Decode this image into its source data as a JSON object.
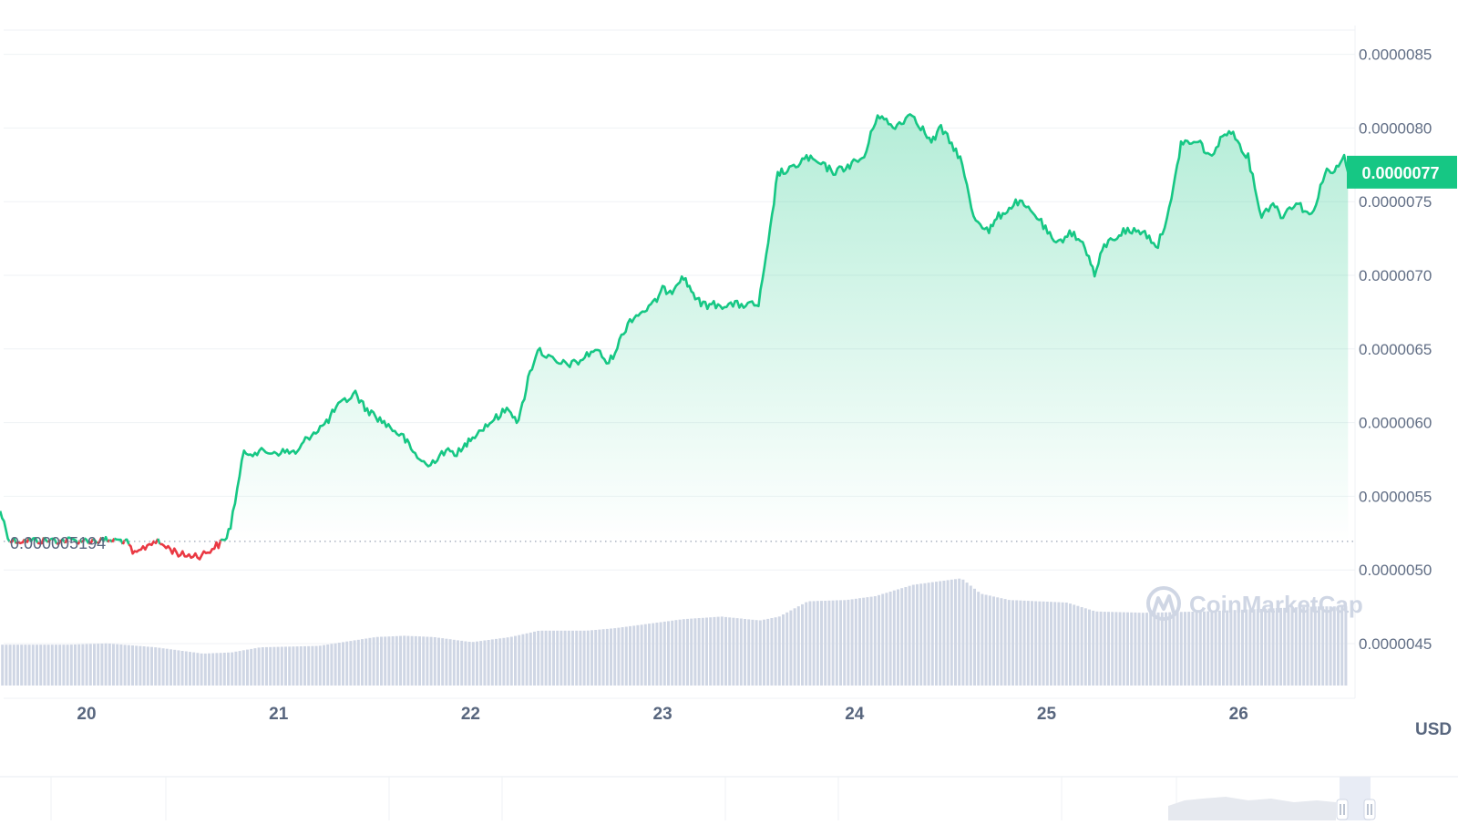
{
  "colors": {
    "up": "#16c784",
    "down": "#ea3943",
    "volume": "#cfd6e4",
    "grid": "#eff2f5",
    "text": "#616e85",
    "badge_text": "#ffffff"
  },
  "currency_label": "USD",
  "watermark": "CoinMarketCap",
  "watermark_icon": "coinmarketcap-logo-icon",
  "navigator_handle_icon": "drag-handle-icon",
  "chart_data": {
    "type": "area",
    "x_ticks": [
      "20",
      "21",
      "22",
      "23",
      "24",
      "25",
      "26"
    ],
    "x_range": [
      19.55,
      26.6
    ],
    "y_ticks": [
      "0.0000085",
      "0.0000080",
      "0.0000075",
      "0.0000070",
      "0.0000065",
      "0.0000060",
      "0.0000055",
      "0.0000050",
      "0.0000045"
    ],
    "y_range": [
      4.1e-06,
      8.7e-06
    ],
    "baseline_label": "0.000005194",
    "baseline_value": 5.194e-06,
    "current_price_label": "0.0000077",
    "current_price": 7.7e-06,
    "grid": true,
    "price_series": {
      "x": [
        19.55,
        19.6,
        19.9,
        20.2,
        20.25,
        20.35,
        20.5,
        20.6,
        20.72,
        20.75,
        20.82,
        20.9,
        21.0,
        21.1,
        21.15,
        21.25,
        21.3,
        21.4,
        21.45,
        21.55,
        21.65,
        21.7,
        21.78,
        21.85,
        21.95,
        22.0,
        22.1,
        22.2,
        22.25,
        22.3,
        22.35,
        22.45,
        22.55,
        22.65,
        22.72,
        22.83,
        22.95,
        23.0,
        23.05,
        23.1,
        23.15,
        23.2,
        23.3,
        23.4,
        23.5,
        23.55,
        23.6,
        23.65,
        23.75,
        23.9,
        24.05,
        24.12,
        24.2,
        24.3,
        24.4,
        24.45,
        24.55,
        24.62,
        24.7,
        24.75,
        24.85,
        24.95,
        25.05,
        25.12,
        25.2,
        25.25,
        25.3,
        25.4,
        25.5,
        25.58,
        25.65,
        25.7,
        25.8,
        25.85,
        25.95,
        26.05,
        26.12,
        26.18,
        26.22,
        26.3,
        26.38,
        26.45,
        26.5,
        26.55,
        26.57
      ],
      "y": [
        5.4e-06,
        5.2e-06,
        5.2e-06,
        5.2e-06,
        5.1e-06,
        5.2e-06,
        5.1e-06,
        5.1e-06,
        5.2e-06,
        5.3e-06,
        5.8e-06,
        5.8e-06,
        5.8e-06,
        5.8e-06,
        5.9e-06,
        6e-06,
        6.1e-06,
        6.2e-06,
        6.1e-06,
        6e-06,
        5.9e-06,
        5.8e-06,
        5.7e-06,
        5.8e-06,
        5.8e-06,
        5.9e-06,
        6e-06,
        6.1e-06,
        6e-06,
        6.3e-06,
        6.5e-06,
        6.4e-06,
        6.4e-06,
        6.5e-06,
        6.4e-06,
        6.7e-06,
        6.8e-06,
        6.9e-06,
        6.9e-06,
        7e-06,
        6.9e-06,
        6.8e-06,
        6.8e-06,
        6.8e-06,
        6.8e-06,
        7.2e-06,
        7.7e-06,
        7.7e-06,
        7.8e-06,
        7.7e-06,
        7.8e-06,
        8.1e-06,
        8e-06,
        8.1e-06,
        7.9e-06,
        8e-06,
        7.8e-06,
        7.4e-06,
        7.3e-06,
        7.4e-06,
        7.5e-06,
        7.4e-06,
        7.2e-06,
        7.3e-06,
        7.2e-06,
        7e-06,
        7.2e-06,
        7.3e-06,
        7.3e-06,
        7.2e-06,
        7.5e-06,
        7.9e-06,
        7.9e-06,
        7.8e-06,
        8e-06,
        7.8e-06,
        7.4e-06,
        7.5e-06,
        7.4e-06,
        7.5e-06,
        7.4e-06,
        7.7e-06,
        7.7e-06,
        7.8e-06,
        7.7e-06
      ]
    },
    "volume_series": {
      "x": [
        19.55,
        19.9,
        20.1,
        20.35,
        20.6,
        20.75,
        20.9,
        21.2,
        21.5,
        21.65,
        21.8,
        22.0,
        22.2,
        22.35,
        22.6,
        22.75,
        22.9,
        23.1,
        23.3,
        23.5,
        23.6,
        23.75,
        23.95,
        24.1,
        24.3,
        24.55,
        24.65,
        24.8,
        25.1,
        25.25,
        25.5,
        25.8,
        26.1,
        26.4,
        26.57
      ],
      "y": [
        0.32,
        0.32,
        0.33,
        0.3,
        0.25,
        0.26,
        0.3,
        0.31,
        0.38,
        0.39,
        0.38,
        0.34,
        0.38,
        0.43,
        0.43,
        0.45,
        0.48,
        0.52,
        0.54,
        0.51,
        0.54,
        0.66,
        0.67,
        0.7,
        0.79,
        0.84,
        0.72,
        0.67,
        0.65,
        0.58,
        0.57,
        0.58,
        0.6,
        0.62,
        0.62
      ]
    }
  }
}
